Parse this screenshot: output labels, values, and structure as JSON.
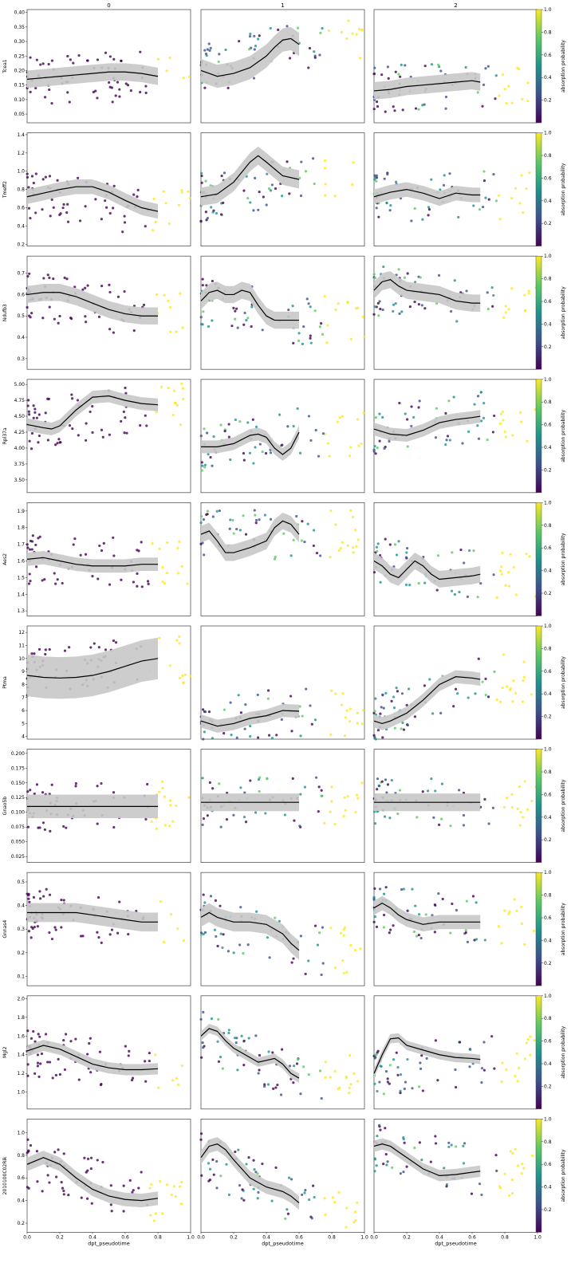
{
  "figure": {
    "columns": [
      "0",
      "1",
      "2"
    ],
    "xlabel": "dpt_pseudotime",
    "colorbar_label": "absorption probability",
    "colorbar_ticks": [
      "0.2",
      "0.4",
      "0.6",
      "0.8",
      "1.0"
    ],
    "x_ticks": [
      "0.0",
      "0.2",
      "0.4",
      "0.6",
      "0.8",
      "1.0"
    ],
    "colors": {
      "trend_line": "#000000",
      "confidence_band": "#c8c8c8",
      "colormap": [
        "#440154",
        "#3b528b",
        "#21918c",
        "#5ec962",
        "#fde725"
      ]
    }
  },
  "chart_data": [
    {
      "type": "scatter",
      "gene": "Tcea1",
      "ylim": [
        0.02,
        0.41
      ],
      "yticks": [
        "0.05",
        "0.10",
        "0.15",
        "0.20",
        "0.25",
        "0.30",
        "0.35",
        "0.40"
      ],
      "trends": [
        {
          "lineage": "0",
          "x": [
            0,
            0.1,
            0.2,
            0.3,
            0.4,
            0.5,
            0.6,
            0.7,
            0.8
          ],
          "y": [
            0.17,
            0.175,
            0.18,
            0.185,
            0.19,
            0.195,
            0.195,
            0.19,
            0.18
          ],
          "band": 0.03
        },
        {
          "lineage": "1",
          "x": [
            0,
            0.1,
            0.2,
            0.3,
            0.4,
            0.45,
            0.5,
            0.55,
            0.6
          ],
          "y": [
            0.2,
            0.18,
            0.19,
            0.21,
            0.25,
            0.28,
            0.305,
            0.31,
            0.29
          ],
          "band": 0.04
        },
        {
          "lineage": "2",
          "x": [
            0,
            0.1,
            0.2,
            0.3,
            0.4,
            0.5,
            0.6,
            0.65
          ],
          "y": [
            0.13,
            0.135,
            0.145,
            0.15,
            0.155,
            0.16,
            0.165,
            0.16
          ],
          "band": 0.03
        }
      ]
    },
    {
      "type": "scatter",
      "gene": "Tmeff2",
      "ylim": [
        0.18,
        1.42
      ],
      "yticks": [
        "0.2",
        "0.4",
        "0.6",
        "0.8",
        "1.0",
        "1.2",
        "1.4"
      ],
      "trends": [
        {
          "lineage": "0",
          "x": [
            0,
            0.1,
            0.2,
            0.3,
            0.4,
            0.5,
            0.6,
            0.7,
            0.8
          ],
          "y": [
            0.72,
            0.76,
            0.8,
            0.83,
            0.83,
            0.77,
            0.68,
            0.6,
            0.56
          ],
          "band": 0.08
        },
        {
          "lineage": "1",
          "x": [
            0,
            0.1,
            0.2,
            0.3,
            0.35,
            0.4,
            0.5,
            0.6
          ],
          "y": [
            0.72,
            0.75,
            0.88,
            1.1,
            1.17,
            1.1,
            0.95,
            0.91
          ],
          "band": 0.1
        },
        {
          "lineage": "2",
          "x": [
            0,
            0.1,
            0.2,
            0.3,
            0.4,
            0.5,
            0.6,
            0.65
          ],
          "y": [
            0.72,
            0.77,
            0.8,
            0.76,
            0.7,
            0.76,
            0.74,
            0.74
          ],
          "band": 0.08
        }
      ]
    },
    {
      "type": "scatter",
      "gene": "Ndufb3",
      "ylim": [
        0.25,
        0.78
      ],
      "yticks": [
        "0.3",
        "0.4",
        "0.5",
        "0.6",
        "0.7"
      ],
      "trends": [
        {
          "lineage": "0",
          "x": [
            0,
            0.1,
            0.2,
            0.3,
            0.4,
            0.5,
            0.6,
            0.7,
            0.8
          ],
          "y": [
            0.6,
            0.61,
            0.61,
            0.59,
            0.56,
            0.53,
            0.51,
            0.5,
            0.5
          ],
          "band": 0.04
        },
        {
          "lineage": "1",
          "x": [
            0,
            0.05,
            0.1,
            0.15,
            0.2,
            0.25,
            0.3,
            0.35,
            0.4,
            0.45,
            0.5,
            0.6
          ],
          "y": [
            0.57,
            0.61,
            0.62,
            0.6,
            0.6,
            0.62,
            0.61,
            0.55,
            0.5,
            0.48,
            0.48,
            0.48
          ],
          "band": 0.04
        },
        {
          "lineage": "2",
          "x": [
            0,
            0.05,
            0.1,
            0.15,
            0.2,
            0.3,
            0.4,
            0.5,
            0.6,
            0.65
          ],
          "y": [
            0.62,
            0.66,
            0.67,
            0.64,
            0.62,
            0.61,
            0.6,
            0.57,
            0.56,
            0.56
          ],
          "band": 0.04
        }
      ]
    },
    {
      "type": "scatter",
      "gene": "Rpl37a",
      "ylim": [
        3.3,
        5.08
      ],
      "yticks": [
        "3.50",
        "3.75",
        "4.00",
        "4.25",
        "4.50",
        "4.75",
        "5.00"
      ],
      "trends": [
        {
          "lineage": "0",
          "x": [
            0,
            0.1,
            0.15,
            0.2,
            0.3,
            0.4,
            0.5,
            0.6,
            0.7,
            0.8
          ],
          "y": [
            4.37,
            4.32,
            4.3,
            4.35,
            4.6,
            4.8,
            4.82,
            4.75,
            4.7,
            4.68
          ],
          "band": 0.1
        },
        {
          "lineage": "1",
          "x": [
            0,
            0.1,
            0.2,
            0.3,
            0.35,
            0.4,
            0.45,
            0.5,
            0.55,
            0.6
          ],
          "y": [
            4.02,
            4.02,
            4.07,
            4.2,
            4.22,
            4.17,
            4.0,
            3.9,
            4.0,
            4.25
          ],
          "band": 0.1
        },
        {
          "lineage": "2",
          "x": [
            0,
            0.1,
            0.2,
            0.3,
            0.4,
            0.5,
            0.6,
            0.65
          ],
          "y": [
            4.3,
            4.22,
            4.2,
            4.28,
            4.4,
            4.45,
            4.48,
            4.5
          ],
          "band": 0.1
        }
      ]
    },
    {
      "type": "scatter",
      "gene": "Aes2",
      "ylim": [
        1.27,
        1.95
      ],
      "yticks": [
        "1.3",
        "1.4",
        "1.5",
        "1.6",
        "1.7",
        "1.8",
        "1.9"
      ],
      "trends": [
        {
          "lineage": "0",
          "x": [
            0,
            0.1,
            0.2,
            0.3,
            0.4,
            0.5,
            0.6,
            0.7,
            0.8
          ],
          "y": [
            1.61,
            1.62,
            1.6,
            1.58,
            1.57,
            1.57,
            1.57,
            1.58,
            1.58
          ],
          "band": 0.04
        },
        {
          "lineage": "1",
          "x": [
            0,
            0.05,
            0.1,
            0.15,
            0.2,
            0.3,
            0.4,
            0.45,
            0.5,
            0.55,
            0.6
          ],
          "y": [
            1.76,
            1.78,
            1.72,
            1.65,
            1.65,
            1.68,
            1.72,
            1.8,
            1.84,
            1.82,
            1.76
          ],
          "band": 0.05
        },
        {
          "lineage": "2",
          "x": [
            0,
            0.05,
            0.1,
            0.15,
            0.2,
            0.25,
            0.3,
            0.35,
            0.4,
            0.5,
            0.6,
            0.65
          ],
          "y": [
            1.6,
            1.57,
            1.52,
            1.5,
            1.55,
            1.6,
            1.57,
            1.52,
            1.49,
            1.5,
            1.51,
            1.52
          ],
          "band": 0.05
        }
      ]
    },
    {
      "type": "scatter",
      "gene": "Ptma",
      "ylim": [
        3.8,
        12.5
      ],
      "yticks": [
        "4",
        "5",
        "6",
        "7",
        "8",
        "9",
        "10",
        "11",
        "12"
      ],
      "trends": [
        {
          "lineage": "0",
          "x": [
            0,
            0.1,
            0.2,
            0.3,
            0.4,
            0.5,
            0.6,
            0.7,
            0.8
          ],
          "y": [
            8.7,
            8.55,
            8.5,
            8.55,
            8.7,
            9.0,
            9.4,
            9.8,
            10.0
          ],
          "band": 1.6
        },
        {
          "lineage": "1",
          "x": [
            0,
            0.1,
            0.2,
            0.3,
            0.4,
            0.5,
            0.6
          ],
          "y": [
            5.2,
            4.8,
            5.0,
            5.4,
            5.6,
            6.0,
            5.95
          ],
          "band": 0.5
        },
        {
          "lineage": "2",
          "x": [
            0,
            0.05,
            0.1,
            0.2,
            0.3,
            0.4,
            0.5,
            0.6,
            0.65
          ],
          "y": [
            5.2,
            5.0,
            5.2,
            5.8,
            6.8,
            8.0,
            8.6,
            8.5,
            8.4
          ],
          "band": 0.5
        }
      ]
    },
    {
      "type": "scatter",
      "gene": "Gnao5b",
      "ylim": [
        0.015,
        0.207
      ],
      "yticks": [
        "0.025",
        "0.050",
        "0.075",
        "0.100",
        "0.125",
        "0.150",
        "0.175",
        "0.200"
      ],
      "trends": [
        {
          "lineage": "0",
          "x": [
            0,
            0.8
          ],
          "y": [
            0.11,
            0.11
          ],
          "band": 0.02
        },
        {
          "lineage": "1",
          "x": [
            0,
            0.6
          ],
          "y": [
            0.117,
            0.117
          ],
          "band": 0.015
        },
        {
          "lineage": "2",
          "x": [
            0,
            0.65
          ],
          "y": [
            0.117,
            0.117
          ],
          "band": 0.015
        }
      ]
    },
    {
      "type": "scatter",
      "gene": "Gnnas4",
      "ylim": [
        0.06,
        0.54
      ],
      "yticks": [
        "0.1",
        "0.2",
        "0.3",
        "0.4",
        "0.5"
      ],
      "trends": [
        {
          "lineage": "0",
          "x": [
            0,
            0.1,
            0.2,
            0.3,
            0.4,
            0.5,
            0.6,
            0.7,
            0.8
          ],
          "y": [
            0.37,
            0.37,
            0.37,
            0.37,
            0.36,
            0.35,
            0.34,
            0.33,
            0.33
          ],
          "band": 0.04
        },
        {
          "lineage": "1",
          "x": [
            0,
            0.05,
            0.1,
            0.2,
            0.3,
            0.4,
            0.5,
            0.55,
            0.6
          ],
          "y": [
            0.35,
            0.37,
            0.35,
            0.33,
            0.33,
            0.32,
            0.28,
            0.24,
            0.21
          ],
          "band": 0.04
        },
        {
          "lineage": "2",
          "x": [
            0,
            0.05,
            0.1,
            0.15,
            0.2,
            0.3,
            0.4,
            0.5,
            0.6,
            0.65
          ],
          "y": [
            0.39,
            0.41,
            0.39,
            0.36,
            0.34,
            0.32,
            0.33,
            0.33,
            0.33,
            0.33
          ],
          "band": 0.03
        }
      ]
    },
    {
      "type": "scatter",
      "gene": "Mgl2",
      "ylim": [
        0.82,
        2.03
      ],
      "yticks": [
        "1.0",
        "1.2",
        "1.4",
        "1.6",
        "1.8",
        "2.0"
      ],
      "trends": [
        {
          "lineage": "0",
          "x": [
            0,
            0.1,
            0.2,
            0.3,
            0.4,
            0.5,
            0.6,
            0.7,
            0.8
          ],
          "y": [
            1.44,
            1.5,
            1.46,
            1.38,
            1.3,
            1.26,
            1.24,
            1.24,
            1.25
          ],
          "band": 0.06
        },
        {
          "lineage": "1",
          "x": [
            0,
            0.05,
            0.1,
            0.15,
            0.2,
            0.25,
            0.3,
            0.35,
            0.4,
            0.45,
            0.5,
            0.55,
            0.6
          ],
          "y": [
            1.6,
            1.68,
            1.65,
            1.55,
            1.47,
            1.42,
            1.37,
            1.32,
            1.34,
            1.36,
            1.3,
            1.2,
            1.15
          ],
          "band": 0.05
        },
        {
          "lineage": "2",
          "x": [
            0,
            0.05,
            0.1,
            0.15,
            0.2,
            0.3,
            0.4,
            0.5,
            0.6,
            0.65
          ],
          "y": [
            1.2,
            1.4,
            1.57,
            1.58,
            1.5,
            1.45,
            1.4,
            1.37,
            1.36,
            1.35
          ],
          "band": 0.05
        }
      ]
    },
    {
      "type": "scatter",
      "gene": "2010100C02Rik",
      "ylim": [
        0.12,
        1.12
      ],
      "yticks": [
        "0.2",
        "0.4",
        "0.6",
        "0.8",
        "1.0"
      ],
      "trends": [
        {
          "lineage": "0",
          "x": [
            0,
            0.1,
            0.2,
            0.3,
            0.4,
            0.5,
            0.6,
            0.7,
            0.8
          ],
          "y": [
            0.72,
            0.78,
            0.72,
            0.6,
            0.5,
            0.44,
            0.41,
            0.4,
            0.42
          ],
          "band": 0.06
        },
        {
          "lineage": "1",
          "x": [
            0,
            0.05,
            0.1,
            0.15,
            0.2,
            0.3,
            0.4,
            0.45,
            0.5,
            0.55,
            0.6
          ],
          "y": [
            0.78,
            0.88,
            0.9,
            0.85,
            0.76,
            0.6,
            0.52,
            0.5,
            0.48,
            0.44,
            0.38
          ],
          "band": 0.06
        },
        {
          "lineage": "2",
          "x": [
            0,
            0.05,
            0.1,
            0.15,
            0.2,
            0.3,
            0.4,
            0.5,
            0.6,
            0.65
          ],
          "y": [
            0.88,
            0.9,
            0.88,
            0.83,
            0.78,
            0.68,
            0.62,
            0.63,
            0.65,
            0.66
          ],
          "band": 0.05
        }
      ]
    }
  ]
}
